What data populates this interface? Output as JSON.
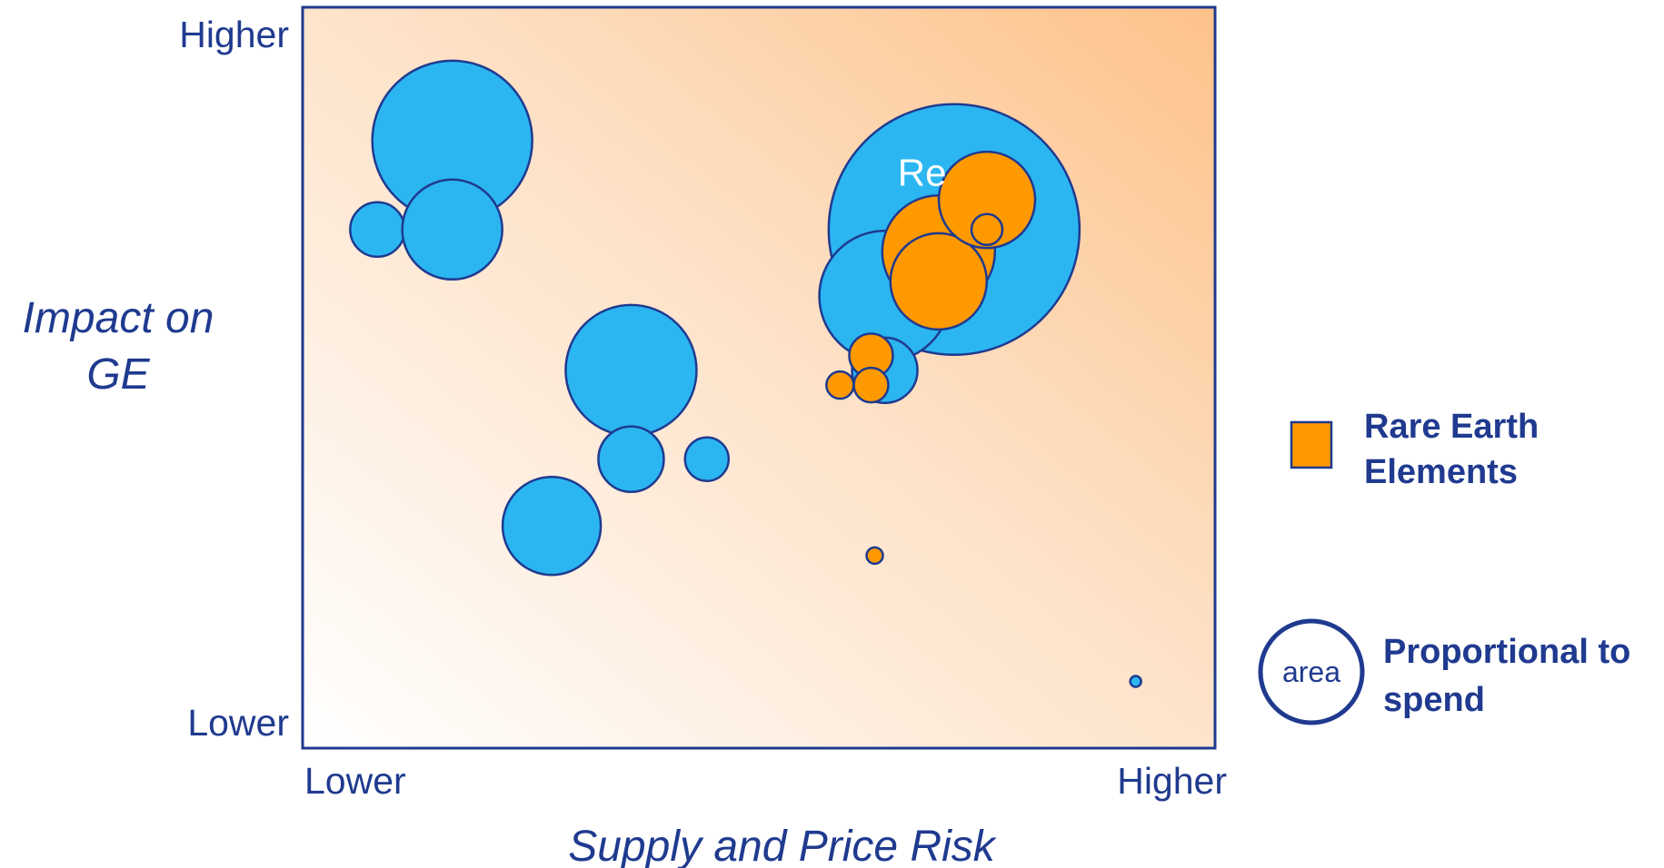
{
  "chart_data": {
    "type": "scatter",
    "subtype": "bubble",
    "xlabel": "Supply and Price Risk",
    "ylabel_lines": [
      "Impact on",
      "GE"
    ],
    "x_ticks": [
      "Lower",
      "Higher"
    ],
    "y_ticks": [
      "Higher",
      "Lower"
    ],
    "xlim": [
      0,
      100
    ],
    "ylim": [
      0,
      100
    ],
    "grid": false,
    "background": "gradient: white bottom-left to orange top-right",
    "legend_position": "right",
    "legend": [
      {
        "kind": "swatch",
        "color": "#ff9900",
        "lines": [
          "Rare Earth",
          "Elements"
        ]
      },
      {
        "kind": "size-key",
        "key_label": "area",
        "lines": [
          "Proportional to",
          "spend"
        ]
      }
    ],
    "series": [
      {
        "color": "#2bb6f2",
        "points": [
          {
            "x": 16.4,
            "y": 82,
            "size": 8.8
          },
          {
            "x": 8.2,
            "y": 70,
            "size": 3
          },
          {
            "x": 16.4,
            "y": 70,
            "size": 5.5
          },
          {
            "x": 36,
            "y": 51,
            "size": 7.2
          },
          {
            "x": 36,
            "y": 39,
            "size": 3.6
          },
          {
            "x": 44.3,
            "y": 39,
            "size": 2.4
          },
          {
            "x": 27.3,
            "y": 30,
            "size": 5.4
          },
          {
            "x": 71.4,
            "y": 70,
            "size": 13.8,
            "label": "Re"
          },
          {
            "x": 63.8,
            "y": 61,
            "size": 7.2
          },
          {
            "x": 63.8,
            "y": 51,
            "size": 3.6
          },
          {
            "x": 91.3,
            "y": 9,
            "size": 0.6
          }
        ]
      },
      {
        "color": "#ff9900",
        "points": [
          {
            "x": 69.7,
            "y": 67,
            "size": 6.2
          },
          {
            "x": 69.7,
            "y": 63,
            "size": 5.3
          },
          {
            "x": 75,
            "y": 74,
            "size": 5.3
          },
          {
            "x": 75,
            "y": 70,
            "size": 1.7
          },
          {
            "x": 62.3,
            "y": 53,
            "size": 2.4
          },
          {
            "x": 62.3,
            "y": 49,
            "size": 1.9
          },
          {
            "x": 58.9,
            "y": 49,
            "size": 1.5
          },
          {
            "x": 62.7,
            "y": 26,
            "size": 0.9
          }
        ]
      }
    ]
  },
  "colors": {
    "axis": "#1f3a8f",
    "bubble_stroke": "#1f3a8f",
    "blue": "#2bb6f2",
    "orange": "#ff9900",
    "gradient_light": "#ffffff",
    "gradient_dark": "#fdc28a"
  }
}
